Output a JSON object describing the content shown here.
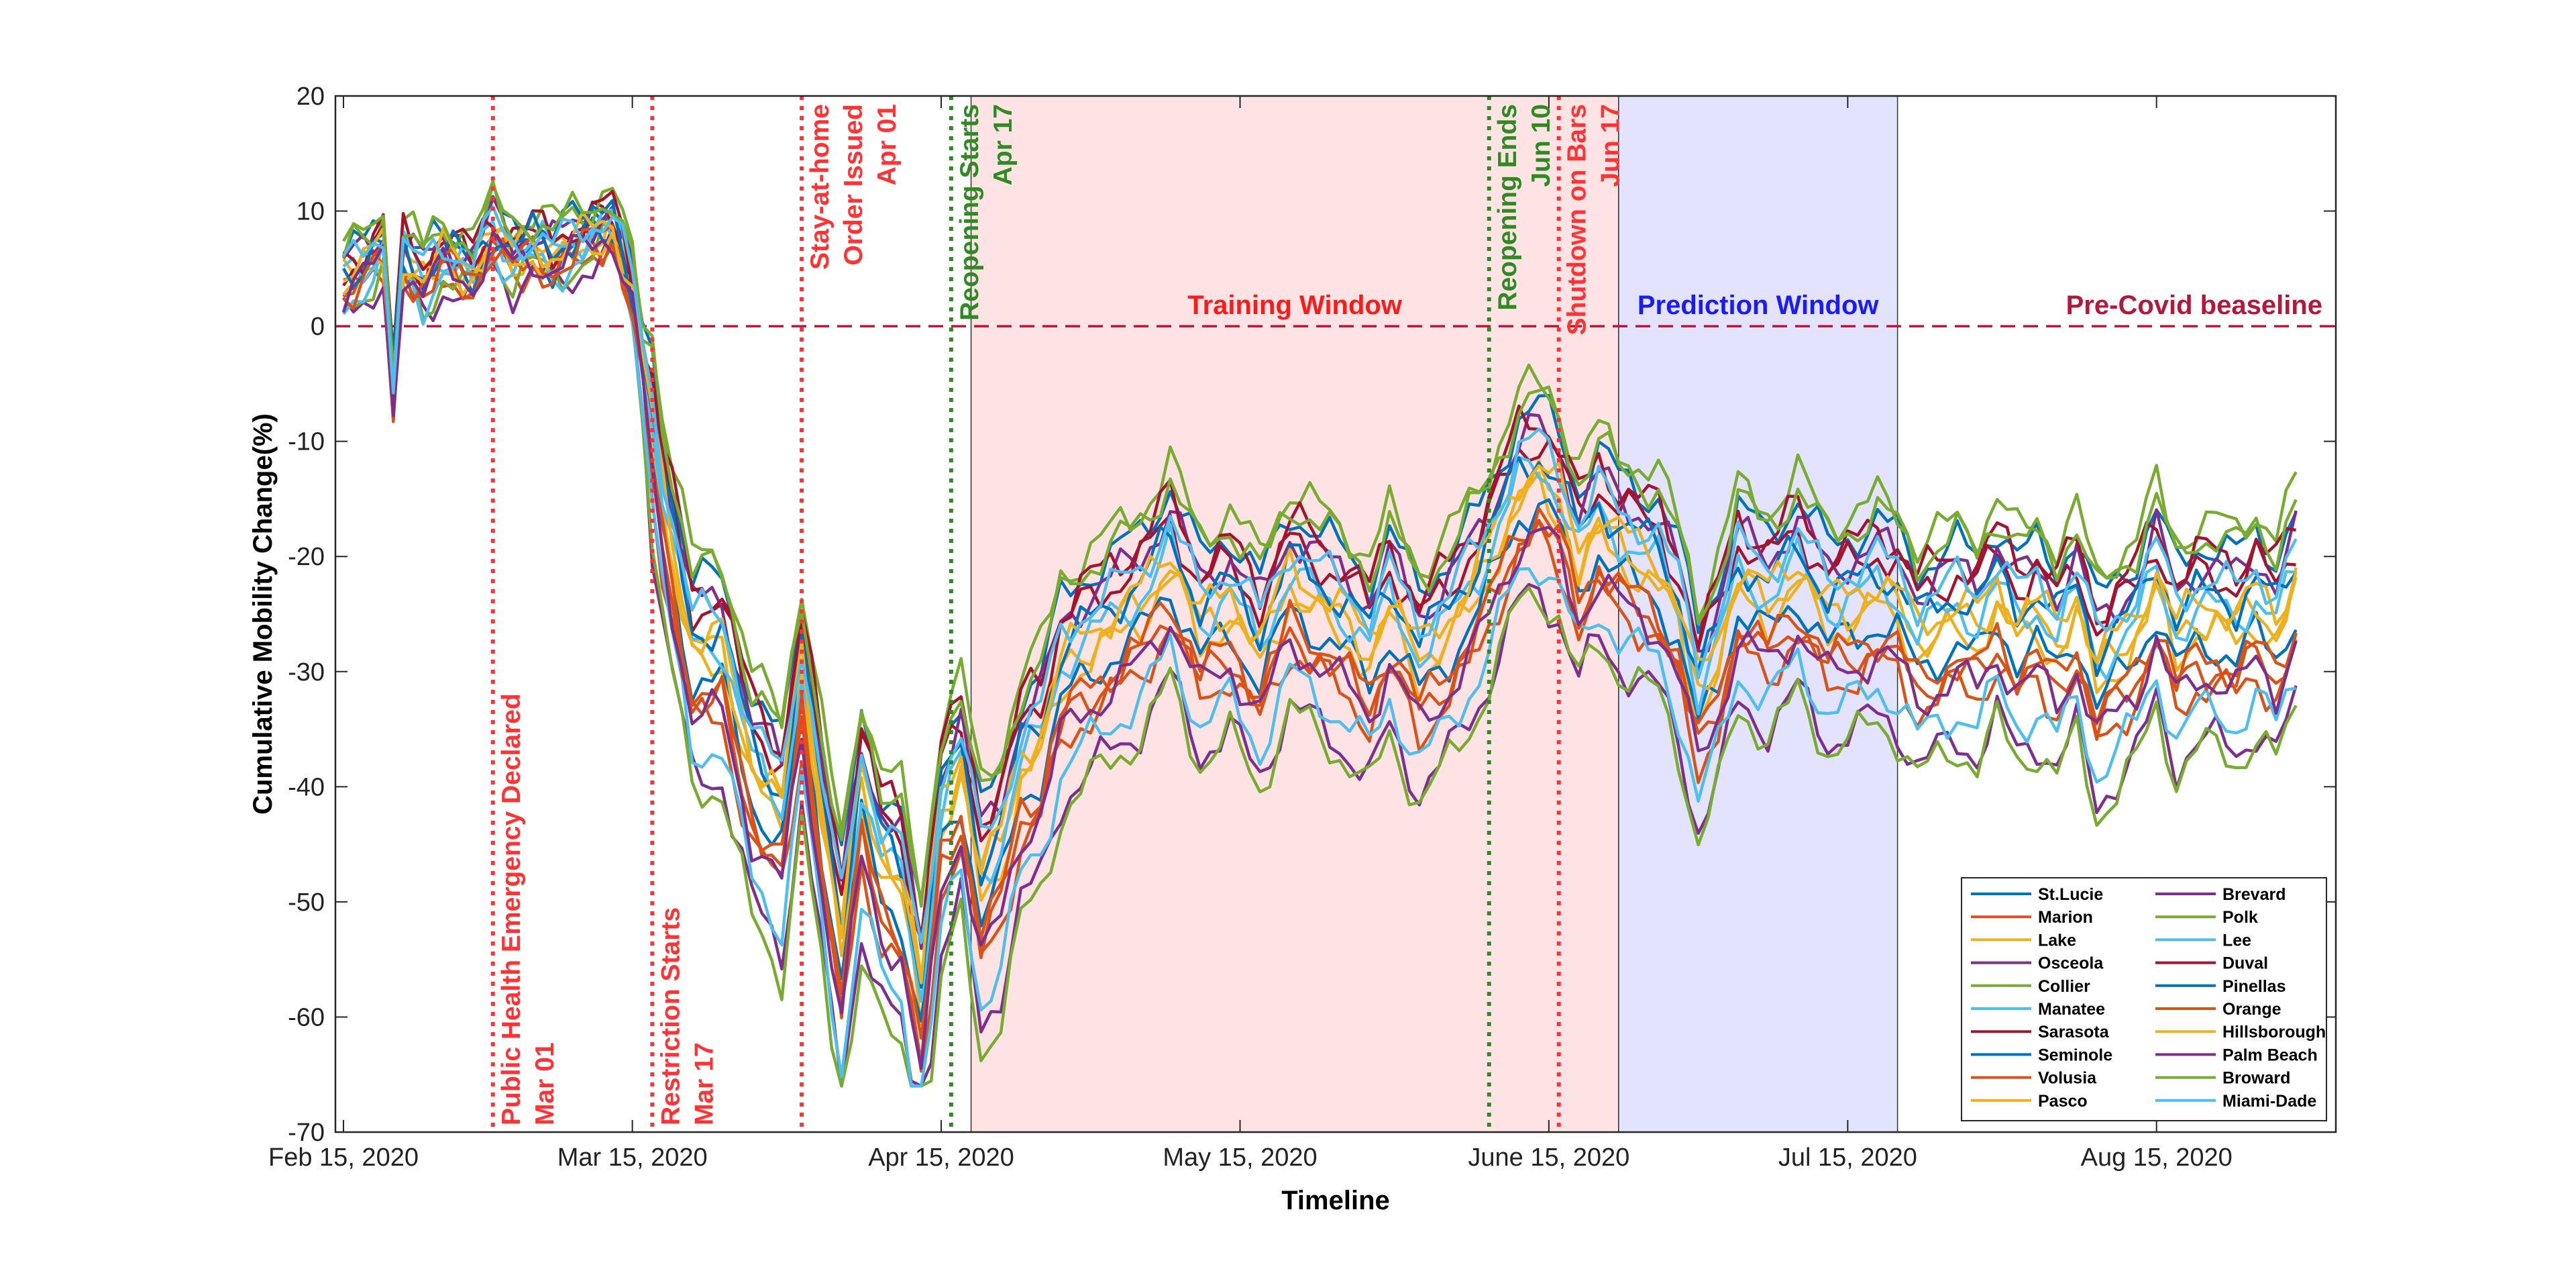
{
  "chart_data": {
    "type": "line",
    "xlabel": "Timeline",
    "ylabel": "Cumulative Mobility Change(%)",
    "ylim": [
      -70,
      20
    ],
    "yticks": [
      20,
      10,
      0,
      -10,
      -20,
      -30,
      -40,
      -50,
      -60,
      -70
    ],
    "x_start": "2020-02-15",
    "x_end": "2020-08-26",
    "x_axis_end_day": 200,
    "xticks": [
      {
        "label": "Feb 15, 2020",
        "day": 0
      },
      {
        "label": "Mar 15, 2020",
        "day": 29
      },
      {
        "label": "Apr 15, 2020",
        "day": 60
      },
      {
        "label": "May 15, 2020",
        "day": 90
      },
      {
        "label": "June 15, 2020",
        "day": 121
      },
      {
        "label": "Jul 15, 2020",
        "day": 151
      },
      {
        "label": "Aug 15, 2020",
        "day": 182
      }
    ],
    "baseline": {
      "value": 0,
      "label": "Pre-Covid beaseline",
      "color": "#b5173a"
    },
    "regions": [
      {
        "name": "training",
        "label": "Training Window",
        "start_day": 63,
        "end_day": 128,
        "fill": "#fde3e3",
        "label_color": "#ff1a1a"
      },
      {
        "name": "prediction",
        "label": "Prediction Window",
        "start_day": 128,
        "end_day": 156,
        "fill": "#e3e3fd",
        "label_color": "#1a1aff"
      }
    ],
    "events": [
      {
        "day": 15,
        "color": "#ff3333",
        "lines": [
          "Public Health Emergency Declared",
          "Mar 01"
        ],
        "placement": "bottom"
      },
      {
        "day": 31,
        "color": "#ff3333",
        "lines": [
          "Restriction Starts",
          "Mar 17"
        ],
        "placement": "bottom"
      },
      {
        "day": 46,
        "color": "#ff3333",
        "lines": [
          "Stay-at-home",
          "Order Issued",
          "Apr 01"
        ],
        "placement": "top"
      },
      {
        "day": 61,
        "color": "#2e8b22",
        "lines": [
          "Reopening Starts",
          "Apr 17"
        ],
        "placement": "top"
      },
      {
        "day": 115,
        "color": "#2e8b22",
        "lines": [
          "Reopening Ends",
          "Jun 10"
        ],
        "placement": "top"
      },
      {
        "day": 122,
        "color": "#ff3333",
        "lines": [
          "Shutdown on Bars",
          "Jun 17"
        ],
        "placement": "top"
      }
    ],
    "profile": {
      "days": [
        0,
        2,
        4,
        5,
        6,
        8,
        10,
        13,
        15,
        17,
        19,
        21,
        23,
        25,
        27,
        29,
        32,
        35,
        38,
        41,
        44,
        46,
        48,
        50,
        52,
        54,
        56,
        58,
        60,
        62,
        64,
        66,
        68,
        70,
        72,
        74,
        77,
        80,
        83,
        86,
        89,
        92,
        95,
        98,
        101,
        103,
        105,
        108,
        111,
        114,
        116,
        118,
        120,
        122,
        124,
        126,
        128,
        130,
        132,
        134,
        136,
        138,
        140,
        143,
        146,
        149,
        152,
        154,
        156,
        158,
        160,
        162,
        164,
        166,
        168,
        170,
        172,
        174,
        176,
        178,
        180,
        182,
        184,
        186,
        188,
        190,
        192,
        194,
        196
      ],
      "values": [
        4,
        5,
        7,
        -5,
        6,
        4,
        6,
        5,
        8,
        6,
        7,
        6,
        7,
        8,
        9,
        3,
        -15,
        -28,
        -28,
        -38,
        -42,
        -30,
        -42,
        -53,
        -40,
        -46,
        -48,
        -58,
        -42,
        -38,
        -48,
        -45,
        -38,
        -36,
        -30,
        -28,
        -26,
        -24,
        -20,
        -26,
        -24,
        -28,
        -22,
        -24,
        -26,
        -28,
        -24,
        -29,
        -26,
        -22,
        -18,
        -14,
        -13,
        -15,
        -20,
        -17,
        -19,
        -20,
        -21,
        -25,
        -32,
        -28,
        -22,
        -24,
        -21,
        -25,
        -24,
        -23,
        -24,
        -27,
        -26,
        -25,
        -26,
        -23,
        -26,
        -25,
        -27,
        -24,
        -30,
        -28,
        -26,
        -22,
        -27,
        -25,
        -25,
        -26,
        -24,
        -26,
        -22
      ]
    },
    "legend": {
      "placement": "bottom-right",
      "columns": 2
    },
    "series": [
      {
        "name": "St.Lucie",
        "color": "#0072bd",
        "offset": 6,
        "scale": 1.0
      },
      {
        "name": "Marion",
        "color": "#d95319",
        "offset": -5,
        "scale": 1.05
      },
      {
        "name": "Lake",
        "color": "#edb120",
        "offset": -1,
        "scale": 1.02
      },
      {
        "name": "Osceola",
        "color": "#7e2f8e",
        "offset": -9,
        "scale": 1.08
      },
      {
        "name": "Collier",
        "color": "#77ac30",
        "offset": -8,
        "scale": 1.15
      },
      {
        "name": "Manatee",
        "color": "#4dbeee",
        "offset": -6,
        "scale": 1.1
      },
      {
        "name": "Sarasota",
        "color": "#a2142f",
        "offset": 3,
        "scale": 0.98
      },
      {
        "name": "Seminole",
        "color": "#0072bd",
        "offset": -2,
        "scale": 1.03
      },
      {
        "name": "Volusia",
        "color": "#d95319",
        "offset": -4,
        "scale": 1.02
      },
      {
        "name": "Pasco",
        "color": "#edb120",
        "offset": -1,
        "scale": 0.97
      },
      {
        "name": "Brevard",
        "color": "#7e2f8e",
        "offset": 4,
        "scale": 1.0
      },
      {
        "name": "Polk",
        "color": "#77ac30",
        "offset": 8,
        "scale": 1.0
      },
      {
        "name": "Lee",
        "color": "#4dbeee",
        "offset": 1,
        "scale": 1.02
      },
      {
        "name": "Duval",
        "color": "#a2142f",
        "offset": 5,
        "scale": 0.99
      },
      {
        "name": "Pinellas",
        "color": "#0072bd",
        "offset": 2,
        "scale": 1.01
      },
      {
        "name": "Orange",
        "color": "#d95319",
        "offset": -3,
        "scale": 1.04
      },
      {
        "name": "Hillsborough",
        "color": "#edb120",
        "offset": 1,
        "scale": 1.0
      },
      {
        "name": "Palm Beach",
        "color": "#7e2f8e",
        "offset": -4,
        "scale": 1.06
      },
      {
        "name": "Broward",
        "color": "#77ac30",
        "offset": 7,
        "scale": 1.01
      },
      {
        "name": "Miami-Dade",
        "color": "#4dbeee",
        "offset": 3,
        "scale": 1.0
      }
    ]
  }
}
